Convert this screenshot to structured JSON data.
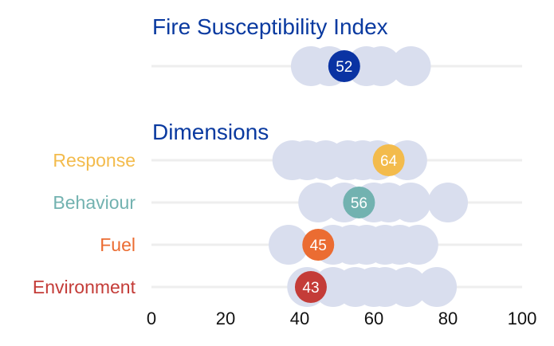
{
  "chart_data": {
    "type": "scatter",
    "title": "Fire Susceptibility Index",
    "subtitle": "Dimensions",
    "xlim": [
      0,
      100
    ],
    "xticks": [
      0,
      20,
      40,
      60,
      80,
      100
    ],
    "grid": true,
    "background_color": "#d9deee",
    "index": {
      "value": 52,
      "color": "#0a33a3",
      "background_values": [
        43,
        48,
        58,
        62,
        70
      ]
    },
    "dimensions": [
      {
        "name": "Response",
        "value": 64,
        "color": "#f3bb4c",
        "background_values": [
          38,
          42,
          47,
          53,
          57,
          61,
          69
        ]
      },
      {
        "name": "Behaviour",
        "value": 56,
        "color": "#72b2b0",
        "background_values": [
          45,
          52,
          60,
          64,
          70,
          80
        ]
      },
      {
        "name": "Fuel",
        "value": 45,
        "color": "#eb6c32",
        "background_values": [
          37,
          49,
          54,
          58,
          63,
          67,
          72
        ]
      },
      {
        "name": "Environment",
        "value": 43,
        "color": "#c43c38",
        "background_values": [
          42,
          49,
          55,
          60,
          63,
          69,
          77
        ]
      }
    ]
  }
}
